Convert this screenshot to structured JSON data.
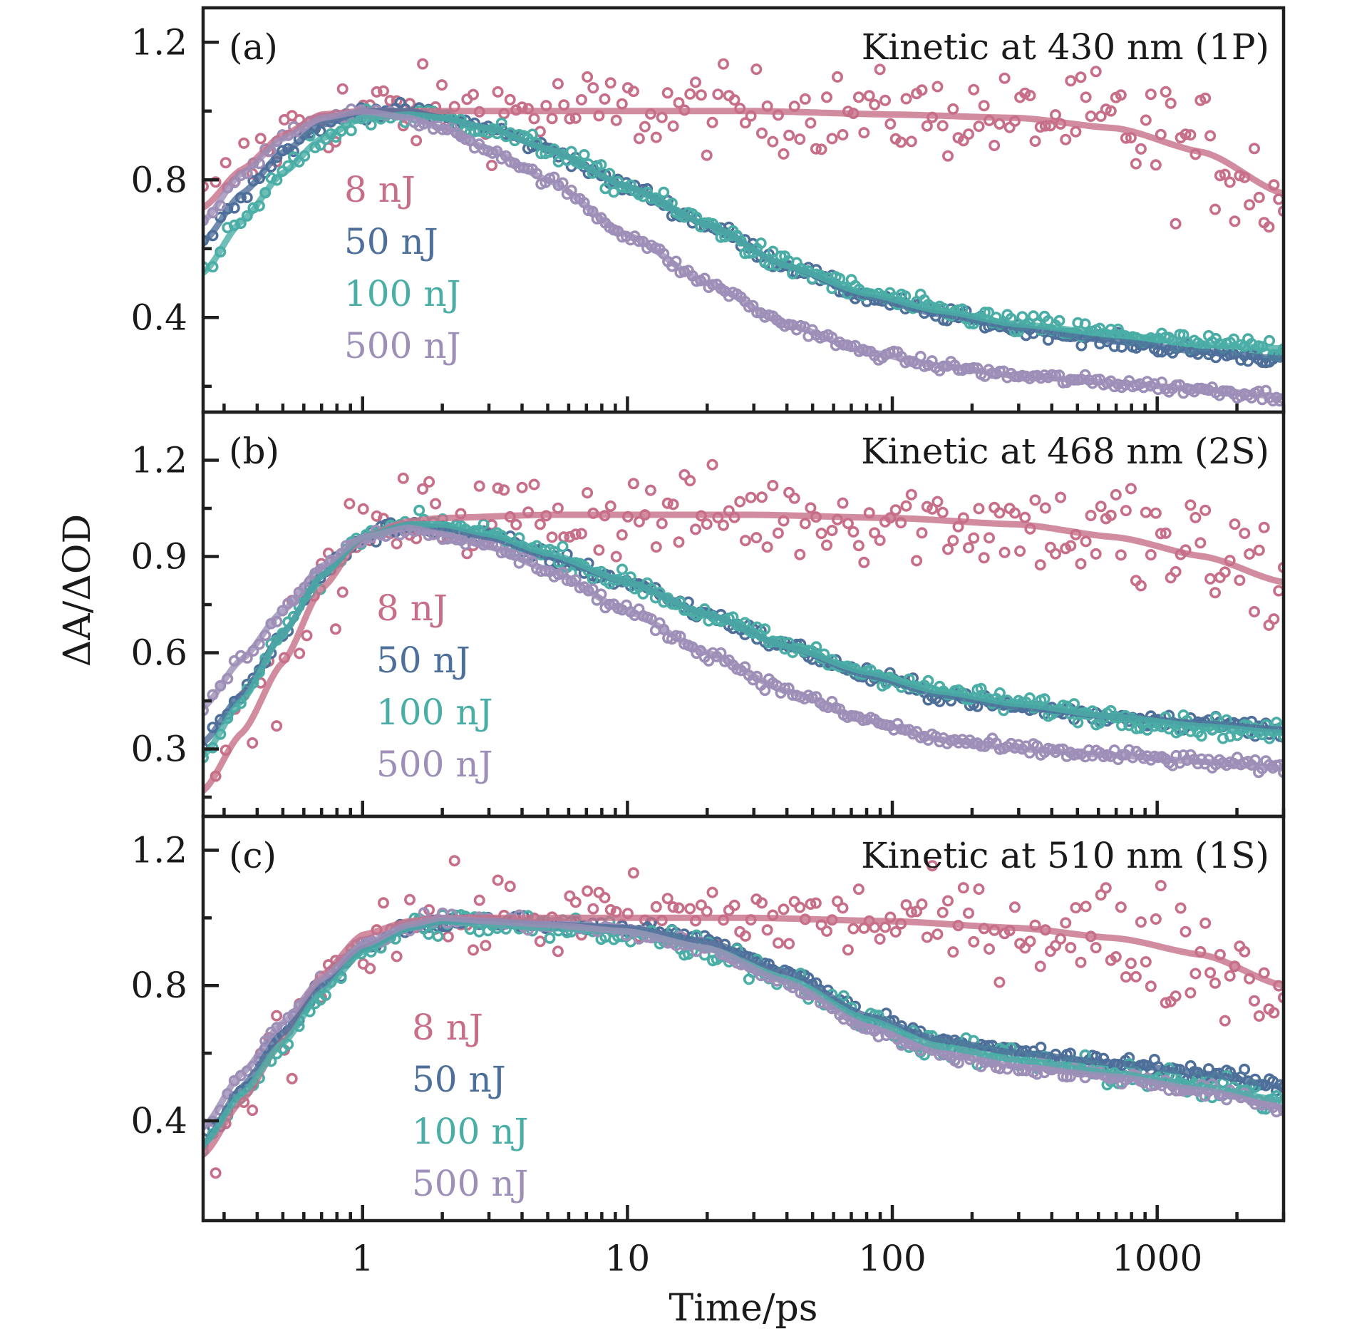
{
  "chart_data": {
    "type": "scatter",
    "title": "",
    "xlabel": "Time/ps",
    "ylabel": "ΔA/ΔOD",
    "xscale": "log",
    "xlim": [
      0.25,
      3000
    ],
    "x_ticks": [
      {
        "value": 1,
        "label": "1"
      },
      {
        "value": 10,
        "label": "10"
      },
      {
        "value": 100,
        "label": "100"
      },
      {
        "value": 1000,
        "label": "1000"
      }
    ],
    "colors": {
      "8 nJ": "#c76f88",
      "50 nJ": "#4e6f9a",
      "100 nJ": "#4aaea6",
      "500 nJ": "#9d8fb7"
    },
    "frame_color": "#1f1f1f",
    "legend_placement": "inside-left",
    "panels": [
      {
        "tag": "(a)",
        "title": "Kinetic at 430 nm (1P)",
        "ylim": [
          0.125,
          1.3
        ],
        "y_ticks": [
          {
            "value": 0.4,
            "label": "0.4"
          },
          {
            "value": 0.8,
            "label": "0.8"
          },
          {
            "value": 1.2,
            "label": "1.2"
          }
        ],
        "y_minor": [
          0.2,
          0.6,
          1.0
        ],
        "legend": [
          "8 nJ",
          "50 nJ",
          "100 nJ",
          "500 nJ"
        ],
        "series": [
          {
            "name": "8 nJ",
            "noise": 0.06,
            "x": [
              0.25,
              0.35,
              0.5,
              0.7,
              1,
              2,
              5,
              10,
              30,
              100,
              300,
              700,
              1500,
              3000
            ],
            "y": [
              0.72,
              0.83,
              0.93,
              0.99,
              1.0,
              1.0,
              1.0,
              1.0,
              1.0,
              0.99,
              0.98,
              0.95,
              0.88,
              0.76
            ]
          },
          {
            "name": "50 nJ",
            "noise": 0.01,
            "x": [
              0.25,
              0.35,
              0.5,
              0.7,
              1,
              1.5,
              2,
              3,
              5,
              10,
              20,
              40,
              80,
              150,
              300,
              700,
              1500,
              3000
            ],
            "y": [
              0.62,
              0.76,
              0.88,
              0.96,
              1.0,
              1.0,
              0.98,
              0.95,
              0.89,
              0.78,
              0.67,
              0.55,
              0.46,
              0.41,
              0.37,
              0.33,
              0.3,
              0.28
            ]
          },
          {
            "name": "100 nJ",
            "noise": 0.015,
            "x": [
              0.25,
              0.35,
              0.5,
              0.7,
              1,
              1.5,
              2,
              3,
              5,
              10,
              20,
              40,
              80,
              150,
              300,
              700,
              1500,
              3000
            ],
            "y": [
              0.53,
              0.68,
              0.82,
              0.92,
              0.98,
              0.99,
              0.98,
              0.95,
              0.89,
              0.78,
              0.67,
              0.55,
              0.47,
              0.42,
              0.38,
              0.35,
              0.32,
              0.31
            ]
          },
          {
            "name": "500 nJ",
            "noise": 0.008,
            "x": [
              0.25,
              0.35,
              0.5,
              0.7,
              1,
              1.5,
              2,
              3,
              5,
              10,
              20,
              40,
              80,
              150,
              300,
              700,
              1500,
              3000
            ],
            "y": [
              0.68,
              0.82,
              0.92,
              0.98,
              1.0,
              0.98,
              0.95,
              0.89,
              0.8,
              0.64,
              0.5,
              0.38,
              0.3,
              0.26,
              0.23,
              0.21,
              0.19,
              0.17
            ]
          }
        ]
      },
      {
        "tag": "(b)",
        "title": "Kinetic at 468 nm (2S)",
        "ylim": [
          0.09,
          1.35
        ],
        "y_ticks": [
          {
            "value": 0.3,
            "label": "0.3"
          },
          {
            "value": 0.6,
            "label": "0.6"
          },
          {
            "value": 0.9,
            "label": "0.9"
          },
          {
            "value": 1.2,
            "label": "1.2"
          }
        ],
        "y_minor": [
          0.15,
          0.45,
          0.75,
          1.05
        ],
        "legend": [
          "8 nJ",
          "50 nJ",
          "100 nJ",
          "500 nJ"
        ],
        "series": [
          {
            "name": "8 nJ",
            "noise": 0.07,
            "x": [
              0.25,
              0.35,
              0.5,
              0.7,
              1,
              1.5,
              2,
              5,
              10,
              30,
              100,
              300,
              700,
              1500,
              3000
            ],
            "y": [
              0.17,
              0.35,
              0.57,
              0.8,
              0.96,
              1.01,
              1.02,
              1.03,
              1.03,
              1.03,
              1.02,
              1.0,
              0.96,
              0.9,
              0.82
            ]
          },
          {
            "name": "50 nJ",
            "noise": 0.012,
            "x": [
              0.25,
              0.35,
              0.5,
              0.7,
              1,
              1.5,
              2,
              3,
              5,
              10,
              20,
              40,
              80,
              150,
              300,
              700,
              1500,
              3000
            ],
            "y": [
              0.32,
              0.47,
              0.66,
              0.84,
              0.96,
              1.0,
              0.99,
              0.96,
              0.9,
              0.82,
              0.72,
              0.62,
              0.53,
              0.47,
              0.43,
              0.4,
              0.38,
              0.36
            ]
          },
          {
            "name": "100 nJ",
            "noise": 0.015,
            "x": [
              0.25,
              0.35,
              0.5,
              0.7,
              1,
              1.5,
              2,
              3,
              5,
              10,
              20,
              40,
              80,
              150,
              300,
              700,
              1500,
              3000
            ],
            "y": [
              0.28,
              0.45,
              0.66,
              0.84,
              0.96,
              1.0,
              1.0,
              0.97,
              0.91,
              0.82,
              0.72,
              0.62,
              0.54,
              0.48,
              0.44,
              0.4,
              0.37,
              0.35
            ]
          },
          {
            "name": "500 nJ",
            "noise": 0.01,
            "x": [
              0.25,
              0.35,
              0.5,
              0.7,
              1,
              1.5,
              2,
              3,
              5,
              10,
              20,
              40,
              80,
              150,
              300,
              700,
              1500,
              3000
            ],
            "y": [
              0.43,
              0.58,
              0.73,
              0.87,
              0.96,
              0.99,
              0.97,
              0.93,
              0.86,
              0.73,
              0.6,
              0.48,
              0.39,
              0.33,
              0.3,
              0.28,
              0.26,
              0.24
            ]
          }
        ]
      },
      {
        "tag": "(c)",
        "title": "Kinetic at 510 nm (1S)",
        "ylim": [
          0.105,
          1.3
        ],
        "y_ticks": [
          {
            "value": 0.4,
            "label": "0.4"
          },
          {
            "value": 0.8,
            "label": "0.8"
          },
          {
            "value": 1.2,
            "label": "1.2"
          }
        ],
        "y_minor": [
          0.6,
          1.0
        ],
        "legend": [
          "8 nJ",
          "50 nJ",
          "100 nJ",
          "500 nJ"
        ],
        "series": [
          {
            "name": "8 nJ",
            "noise": 0.06,
            "x": [
              0.25,
              0.35,
              0.5,
              0.7,
              1,
              1.5,
              2,
              5,
              10,
              30,
              100,
              300,
              700,
              1500,
              3000
            ],
            "y": [
              0.3,
              0.46,
              0.64,
              0.83,
              0.95,
              0.99,
              1.0,
              1.0,
              1.0,
              1.0,
              0.99,
              0.97,
              0.94,
              0.89,
              0.8
            ]
          },
          {
            "name": "50 nJ",
            "noise": 0.012,
            "x": [
              0.25,
              0.35,
              0.5,
              0.7,
              1,
              1.5,
              2,
              3,
              5,
              10,
              20,
              40,
              80,
              150,
              300,
              700,
              1500,
              3000
            ],
            "y": [
              0.33,
              0.5,
              0.66,
              0.8,
              0.91,
              0.97,
              0.99,
              0.99,
              0.98,
              0.97,
              0.93,
              0.84,
              0.71,
              0.64,
              0.6,
              0.57,
              0.54,
              0.5
            ]
          },
          {
            "name": "100 nJ",
            "noise": 0.02,
            "x": [
              0.25,
              0.35,
              0.5,
              0.7,
              1,
              1.5,
              2,
              3,
              5,
              10,
              20,
              40,
              80,
              150,
              300,
              700,
              1500,
              3000
            ],
            "y": [
              0.33,
              0.48,
              0.63,
              0.78,
              0.9,
              0.97,
              0.99,
              0.98,
              0.97,
              0.96,
              0.91,
              0.82,
              0.7,
              0.62,
              0.58,
              0.54,
              0.5,
              0.46
            ]
          },
          {
            "name": "500 nJ",
            "noise": 0.01,
            "x": [
              0.25,
              0.35,
              0.5,
              0.7,
              1,
              1.5,
              2,
              3,
              5,
              10,
              20,
              40,
              80,
              150,
              300,
              700,
              1500,
              3000
            ],
            "y": [
              0.38,
              0.54,
              0.69,
              0.82,
              0.92,
              0.98,
              1.0,
              0.99,
              0.98,
              0.96,
              0.91,
              0.81,
              0.68,
              0.6,
              0.56,
              0.53,
              0.49,
              0.44
            ]
          }
        ]
      }
    ]
  }
}
